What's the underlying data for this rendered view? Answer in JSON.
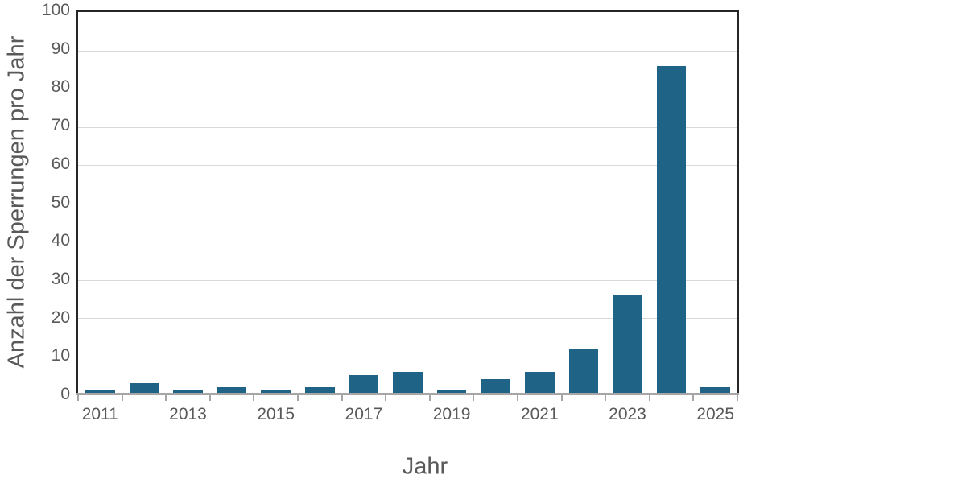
{
  "chart_data": {
    "type": "bar",
    "categories": [
      "2011",
      "2012",
      "2013",
      "2014",
      "2015",
      "2016",
      "2017",
      "2018",
      "2019",
      "2020",
      "2021",
      "2022",
      "2023",
      "2024",
      "2025"
    ],
    "values": [
      1,
      3,
      1,
      2,
      1,
      2,
      5,
      6,
      1,
      4,
      6,
      12,
      26,
      86,
      2
    ],
    "title": "",
    "xlabel": "Jahr",
    "ylabel": "Anzahl der Sperrungen pro Jahr",
    "ylim": [
      0,
      100
    ],
    "ytick_step": 10,
    "xtick_label_every": 2,
    "grid": true,
    "legend": false,
    "bar_color": "#1f6487",
    "grid_color": "#d9d9d9",
    "axis_line_color": "#a6a6a6",
    "plot_border_color": "#262626",
    "text_color": "#595959",
    "background_color": "#ffffff"
  }
}
